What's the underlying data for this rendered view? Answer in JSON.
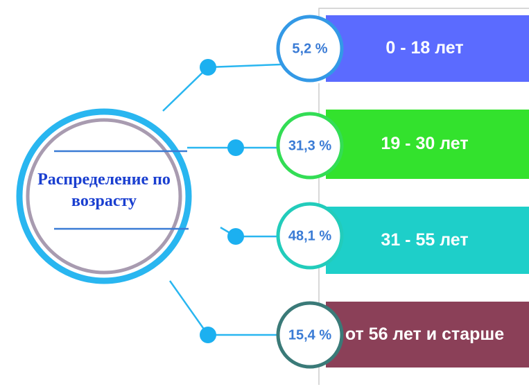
{
  "title": "Распределение по возрасту",
  "items": [
    {
      "percent": "5,2 %",
      "label": "0 - 18 лет"
    },
    {
      "percent": "31,3 %",
      "label": "19 - 30 лет"
    },
    {
      "percent": "48,1 %",
      "label": "31 - 55 лет"
    },
    {
      "percent": "15,4 %",
      "label": "от 56 лет и старше"
    }
  ]
}
